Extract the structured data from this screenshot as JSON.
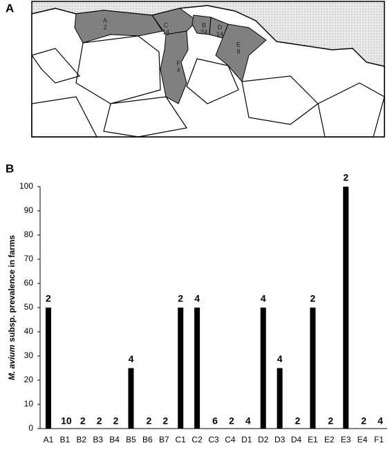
{
  "map": {
    "panel_label": "A",
    "regions": [
      {
        "id": "A",
        "count": 2
      },
      {
        "id": "C",
        "count": 14
      },
      {
        "id": "B",
        "count": 24
      },
      {
        "id": "D",
        "count": 14
      },
      {
        "id": "E",
        "count": 8
      },
      {
        "id": "F",
        "count": 4
      }
    ]
  },
  "chart_data": {
    "type": "bar",
    "panel_label": "B",
    "ylabel_italic": "M. avium",
    "ylabel": "subsp. prevalence in farms",
    "categories": [
      "A1",
      "B1",
      "B2",
      "B3",
      "B4",
      "B5",
      "B6",
      "B7",
      "C1",
      "C2",
      "C3",
      "C4",
      "D1",
      "D2",
      "D3",
      "D4",
      "E1",
      "E2",
      "E3",
      "E4",
      "F1"
    ],
    "values": [
      50,
      0,
      0,
      0,
      0,
      25,
      0,
      0,
      50,
      50,
      0,
      0,
      0,
      50,
      25,
      0,
      50,
      0,
      100,
      0,
      0
    ],
    "bar_labels": [
      2,
      10,
      2,
      2,
      2,
      4,
      2,
      2,
      2,
      4,
      6,
      2,
      4,
      4,
      4,
      2,
      2,
      2,
      2,
      2,
      4
    ],
    "color": "#000000",
    "ylim": [
      0,
      100
    ],
    "yticks": [
      0,
      10,
      20,
      30,
      40,
      50,
      60,
      70,
      80,
      90,
      100
    ],
    "grid": false
  }
}
